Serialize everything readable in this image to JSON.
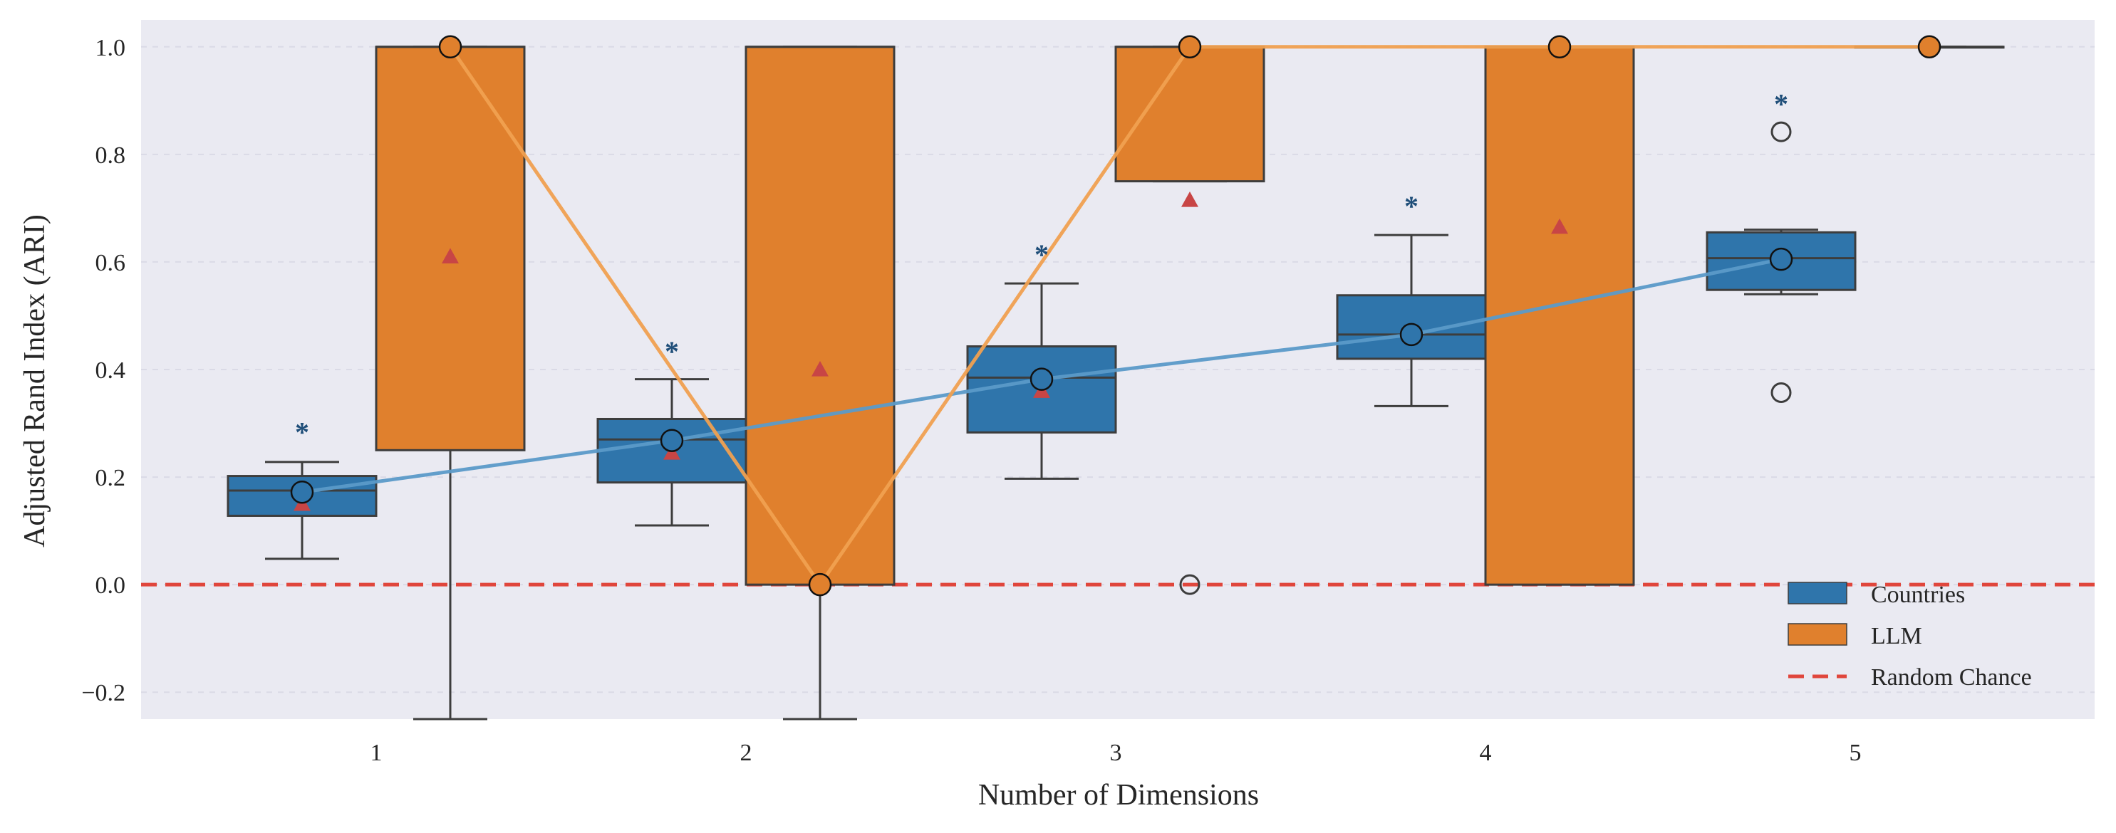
{
  "chart_data": {
    "type": "box",
    "xlabel": "Number of Dimensions",
    "ylabel": "Adjusted Rand Index (ARI)",
    "categories": [
      "1",
      "2",
      "3",
      "4",
      "5"
    ],
    "ylim": [
      -0.25,
      1.05
    ],
    "yticks": [
      -0.2,
      0.0,
      0.2,
      0.4,
      0.6,
      0.8,
      1.0
    ],
    "ytick_labels": [
      "−0.2",
      "0.0",
      "0.2",
      "0.4",
      "0.6",
      "0.8",
      "1.0"
    ],
    "grid": true,
    "legend_position": "bottom-right",
    "legend": [
      {
        "label": "Countries",
        "kind": "patch",
        "color": "#2f75ab"
      },
      {
        "label": "LLM",
        "kind": "patch",
        "color": "#e0802d"
      },
      {
        "label": "Random Chance",
        "kind": "dashed-line",
        "color": "#e0463c"
      }
    ],
    "reference_line": {
      "y": 0.0,
      "color": "#e0463c"
    },
    "series": [
      {
        "name": "Countries",
        "color": "#2f75ab",
        "line_color": "#5b9ac8",
        "boxes": [
          {
            "q1": 0.128,
            "median": 0.175,
            "q3": 0.202,
            "whisker_low": 0.048,
            "whisker_high": 0.228,
            "mean": 0.15,
            "marker": 0.172,
            "significance_y": 0.295,
            "fliers": []
          },
          {
            "q1": 0.19,
            "median": 0.27,
            "q3": 0.308,
            "whisker_low": 0.11,
            "whisker_high": 0.382,
            "mean": 0.245,
            "marker": 0.268,
            "significance_y": 0.445,
            "fliers": []
          },
          {
            "q1": 0.283,
            "median": 0.385,
            "q3": 0.443,
            "whisker_low": 0.197,
            "whisker_high": 0.56,
            "mean": 0.36,
            "marker": 0.382,
            "significance_y": 0.625,
            "fliers": []
          },
          {
            "q1": 0.42,
            "median": 0.465,
            "q3": 0.538,
            "whisker_low": 0.332,
            "whisker_high": 0.65,
            "mean": 0.465,
            "marker": 0.465,
            "significance_y": 0.715,
            "fliers": []
          },
          {
            "q1": 0.548,
            "median": 0.607,
            "q3": 0.655,
            "whisker_low": 0.54,
            "whisker_high": 0.66,
            "mean": 0.605,
            "marker": 0.605,
            "significance_y": 0.905,
            "fliers": [
              0.357,
              0.842
            ]
          }
        ]
      },
      {
        "name": "LLM",
        "color": "#e0802d",
        "line_color": "#f0a050",
        "boxes": [
          {
            "q1": 0.25,
            "median": 1.0,
            "q3": 1.0,
            "whisker_low": -0.25,
            "whisker_high": 1.0,
            "mean": 0.61,
            "marker": 1.0,
            "fliers": []
          },
          {
            "q1": 0.0,
            "median": 1.0,
            "q3": 1.0,
            "whisker_low": -0.25,
            "whisker_high": 1.0,
            "mean": 0.4,
            "marker": 0.0,
            "fliers": []
          },
          {
            "q1": 0.75,
            "median": 1.0,
            "q3": 1.0,
            "whisker_low": 0.75,
            "whisker_high": 1.0,
            "mean": 0.715,
            "marker": 1.0,
            "fliers": [
              0.0
            ]
          },
          {
            "q1": 0.0,
            "median": 1.0,
            "q3": 1.0,
            "whisker_low": 0.0,
            "whisker_high": 1.0,
            "mean": 0.665,
            "marker": 1.0,
            "fliers": []
          },
          {
            "q1": 1.0,
            "median": 1.0,
            "q3": 1.0,
            "whisker_low": 1.0,
            "whisker_high": 1.0,
            "mean": 1.0,
            "marker": 1.0,
            "fliers": []
          }
        ]
      }
    ],
    "colors": {
      "background": "#eaeaf2",
      "grid": "#dadae6",
      "box_edge": "#3d3d3d",
      "mean_marker": "#c84545",
      "significance_marker": "#1f4e79"
    }
  }
}
